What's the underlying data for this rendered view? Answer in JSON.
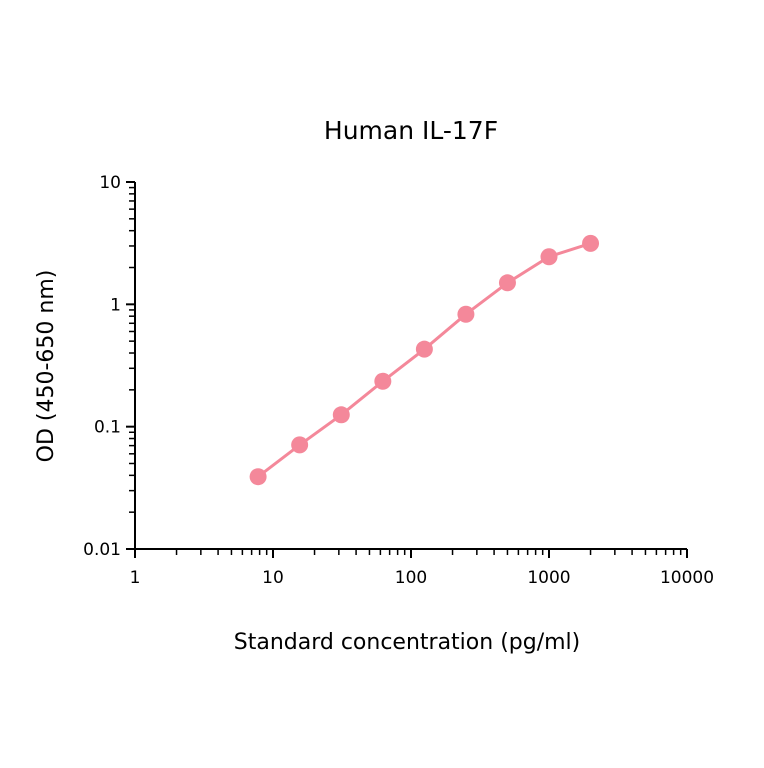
{
  "chart_data": {
    "type": "line",
    "title": "Human IL-17F",
    "xlabel": "Standard concentration (pg/ml)",
    "ylabel": "OD (450-650 nm)",
    "x_scale": "log",
    "y_scale": "log",
    "xlim": [
      1,
      10000
    ],
    "ylim": [
      0.01,
      10
    ],
    "x_ticks": [
      {
        "value": 1,
        "label": "1"
      },
      {
        "value": 10,
        "label": "10"
      },
      {
        "value": 100,
        "label": "100"
      },
      {
        "value": 1000,
        "label": "1000"
      },
      {
        "value": 10000,
        "label": "10000"
      }
    ],
    "y_ticks": [
      {
        "value": 0.01,
        "label": "0.01"
      },
      {
        "value": 0.1,
        "label": "0.1"
      },
      {
        "value": 1,
        "label": "1"
      },
      {
        "value": 10,
        "label": "10"
      }
    ],
    "grid": false,
    "legend": "none",
    "series": [
      {
        "color": "#f4889a",
        "x": [
          7.8,
          15.6,
          31.25,
          62.5,
          125,
          250,
          500,
          1000,
          2000
        ],
        "y": [
          0.039,
          0.071,
          0.125,
          0.235,
          0.43,
          0.83,
          1.5,
          2.45,
          3.15
        ]
      }
    ]
  }
}
